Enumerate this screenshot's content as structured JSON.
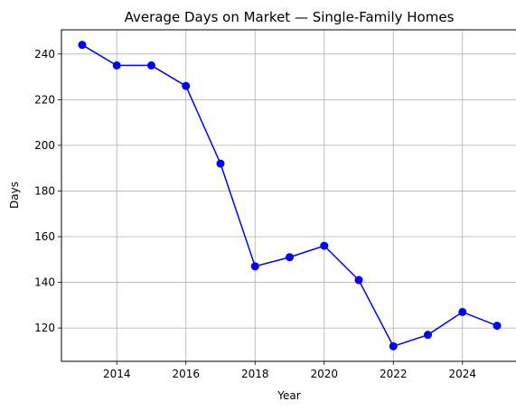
{
  "chart_data": {
    "type": "line",
    "title": "Average Days on Market — Single-Family Homes",
    "xlabel": "Year",
    "ylabel": "Days",
    "x": [
      2013,
      2014,
      2015,
      2016,
      2017,
      2018,
      2019,
      2020,
      2021,
      2022,
      2023,
      2024,
      2025
    ],
    "series": [
      {
        "values": [
          244,
          235,
          235,
          226,
          192,
          147,
          151,
          156,
          141,
          112,
          117,
          127,
          121
        ],
        "color": "#0000ff",
        "marker": "circle"
      }
    ],
    "xlim": [
      2012.4,
      2025.6
    ],
    "ylim": [
      105.4,
      250.6
    ],
    "xticks": [
      2014,
      2016,
      2018,
      2020,
      2022,
      2024
    ],
    "yticks": [
      120,
      140,
      160,
      180,
      200,
      220,
      240
    ],
    "grid": true,
    "legend": "none"
  }
}
